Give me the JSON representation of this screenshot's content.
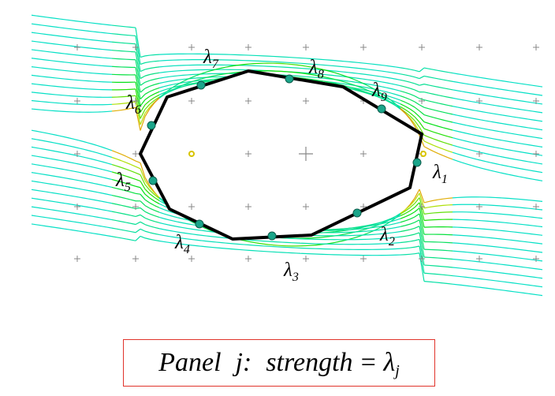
{
  "figure": {
    "panel_symbol": "λ",
    "panel_labels": [
      "1",
      "2",
      "3",
      "4",
      "5",
      "6",
      "7",
      "8",
      "9"
    ],
    "colors": {
      "body_outline": "#000000",
      "control_point": "#1aa58a",
      "grid_marker": "#888888",
      "stagnation_marker": "#d8c400",
      "caption_border": "#e0332b"
    }
  },
  "caption": {
    "panel_word": "Panel",
    "j": "j",
    "colon": ":",
    "strength_word": "strength",
    "equals": "=",
    "lambda": "λ",
    "subscript": "j"
  }
}
